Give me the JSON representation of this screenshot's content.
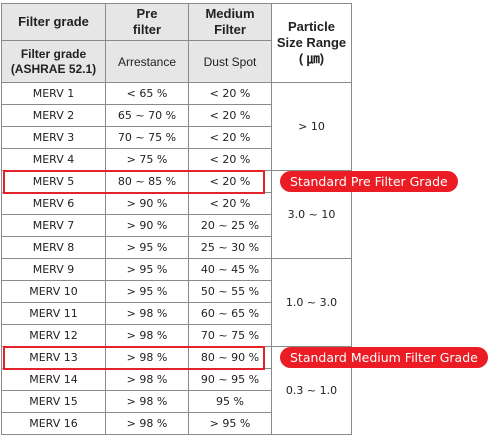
{
  "headers": {
    "filter_grade": "Filter grade",
    "pre_filter": "Pre\nfilter",
    "medium_filter": "Medium\nFilter",
    "particle_size": "Particle\nSize Range\n( ㎛)",
    "filter_grade_ashrae": "Filter grade\n(ASHRAE 52.1)",
    "arrestance": "Arrestance",
    "dust_spot": "Dust Spot"
  },
  "rows": [
    {
      "grade": "MERV 1",
      "arrestance": "< 65 %",
      "dust": "< 20 %"
    },
    {
      "grade": "MERV  2",
      "arrestance": "65 ~ 70 %",
      "dust": "< 20 %"
    },
    {
      "grade": "MERV  3",
      "arrestance": "70 ~ 75 %",
      "dust": "< 20 %"
    },
    {
      "grade": "MERV  4",
      "arrestance": "> 75 %",
      "dust": "< 20 %"
    },
    {
      "grade": "MERV  5",
      "arrestance": "80 ~ 85 %",
      "dust": "< 20 %"
    },
    {
      "grade": "MERV  6",
      "arrestance": "> 90 %",
      "dust": "< 20 %"
    },
    {
      "grade": "MERV  7",
      "arrestance": "> 90 %",
      "dust": "20 ~ 25 %"
    },
    {
      "grade": "MERV  8",
      "arrestance": "> 95 %",
      "dust": "25 ~ 30 %"
    },
    {
      "grade": "MERV  9",
      "arrestance": "> 95 %",
      "dust": "40 ~ 45 %"
    },
    {
      "grade": "MERV  10",
      "arrestance": "> 95 %",
      "dust": "50 ~ 55 %"
    },
    {
      "grade": "MERV  11",
      "arrestance": "> 98 %",
      "dust": "60 ~ 65 %"
    },
    {
      "grade": "MERV  12",
      "arrestance": "> 98 %",
      "dust": "70 ~ 75 %"
    },
    {
      "grade": "MERV  13",
      "arrestance": "> 98 %",
      "dust": "80 ~ 90 %"
    },
    {
      "grade": "MERV  14",
      "arrestance": "> 98 %",
      "dust": "90 ~ 95 %"
    },
    {
      "grade": "MERV  15",
      "arrestance": "> 98 %",
      "dust": "95 %"
    },
    {
      "grade": "MERV  16",
      "arrestance": "> 98 %",
      "dust": "> 95 %"
    }
  ],
  "ranges": [
    {
      "label": "> 10",
      "rows": 4
    },
    {
      "label": "3.0 ~ 10",
      "rows": 4
    },
    {
      "label": "1.0 ~ 3.0",
      "rows": 4
    },
    {
      "label": "0.3 ~ 1.0",
      "rows": 4
    }
  ],
  "highlights": [
    {
      "row_index": 4,
      "label": "Standard Pre Filter Grade"
    },
    {
      "row_index": 12,
      "label": "Standard Medium Filter Grade"
    }
  ],
  "colors": {
    "highlight": "#e3232c",
    "badge": "#ec1c24",
    "header_bg": "#e6e6e6",
    "border": "#8a8a8a"
  }
}
